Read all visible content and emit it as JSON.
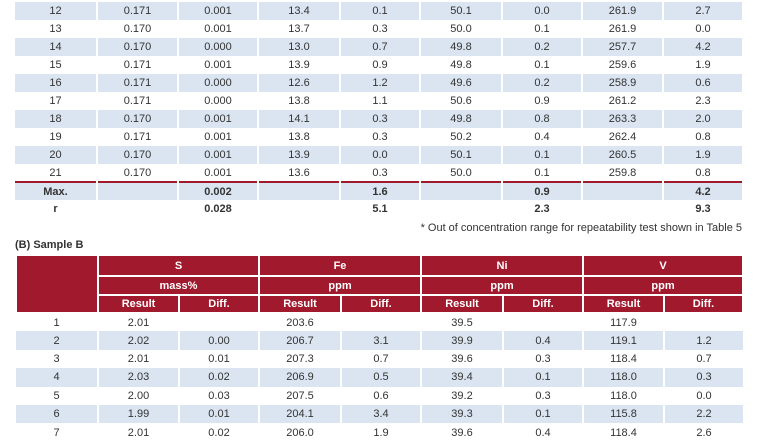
{
  "table_a": {
    "rows": [
      [
        "12",
        "0.171",
        "0.001",
        "13.4",
        "0.1",
        "50.1",
        "0.0",
        "261.9",
        "2.7"
      ],
      [
        "13",
        "0.170",
        "0.001",
        "13.7",
        "0.3",
        "50.0",
        "0.1",
        "261.9",
        "0.0"
      ],
      [
        "14",
        "0.170",
        "0.000",
        "13.0",
        "0.7",
        "49.8",
        "0.2",
        "257.7",
        "4.2"
      ],
      [
        "15",
        "0.171",
        "0.001",
        "13.9",
        "0.9",
        "49.8",
        "0.1",
        "259.6",
        "1.9"
      ],
      [
        "16",
        "0.171",
        "0.000",
        "12.6",
        "1.2",
        "49.6",
        "0.2",
        "258.9",
        "0.6"
      ],
      [
        "17",
        "0.171",
        "0.000",
        "13.8",
        "1.1",
        "50.6",
        "0.9",
        "261.2",
        "2.3"
      ],
      [
        "18",
        "0.170",
        "0.001",
        "14.1",
        "0.3",
        "49.8",
        "0.8",
        "263.3",
        "2.0"
      ],
      [
        "19",
        "0.171",
        "0.001",
        "13.8",
        "0.3",
        "50.2",
        "0.4",
        "262.4",
        "0.8"
      ],
      [
        "20",
        "0.170",
        "0.001",
        "13.9",
        "0.0",
        "50.1",
        "0.1",
        "260.5",
        "1.9"
      ],
      [
        "21",
        "0.170",
        "0.001",
        "13.6",
        "0.3",
        "50.0",
        "0.1",
        "259.8",
        "0.8"
      ]
    ],
    "summary_rows": [
      [
        "Max.",
        null,
        "0.002",
        null,
        "1.6",
        null,
        "0.9",
        null,
        "4.2"
      ],
      [
        "r",
        null,
        "0.028",
        null,
        "5.1",
        null,
        "2.3",
        null,
        "9.3"
      ]
    ],
    "footnote": "* Out of concentration range for repeatability test shown in Table 5"
  },
  "table_b": {
    "caption": "(B) Sample B",
    "elements": [
      "S",
      "Fe",
      "Ni",
      "V"
    ],
    "units": [
      "mass%",
      "ppm",
      "ppm",
      "ppm"
    ],
    "subheaders": [
      "Result",
      "Diff."
    ],
    "rows": [
      [
        "1",
        "2.01",
        null,
        "203.6",
        null,
        "39.5",
        null,
        "117.9",
        null
      ],
      [
        "2",
        "2.02",
        "0.00",
        "206.7",
        "3.1",
        "39.9",
        "0.4",
        "119.1",
        "1.2"
      ],
      [
        "3",
        "2.01",
        "0.01",
        "207.3",
        "0.7",
        "39.6",
        "0.3",
        "118.4",
        "0.7"
      ],
      [
        "4",
        "2.03",
        "0.02",
        "206.9",
        "0.5",
        "39.4",
        "0.1",
        "118.0",
        "0.3"
      ],
      [
        "5",
        "2.00",
        "0.03",
        "207.5",
        "0.6",
        "39.2",
        "0.3",
        "118.0",
        "0.0"
      ],
      [
        "6",
        "1.99",
        "0.01",
        "204.1",
        "3.4",
        "39.3",
        "0.1",
        "115.8",
        "2.2"
      ],
      [
        "7",
        "2.01",
        "0.02",
        "206.0",
        "1.9",
        "39.6",
        "0.4",
        "118.4",
        "2.6"
      ]
    ]
  }
}
